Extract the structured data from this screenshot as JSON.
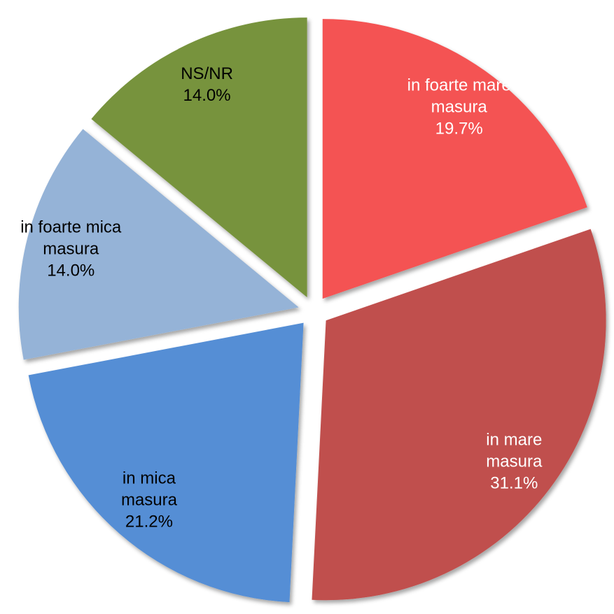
{
  "chart_data": {
    "type": "pie",
    "categories": [
      "in foarte mare masura",
      "in mare masura",
      "in mica masura",
      "in foarte mica masura",
      "NS/NR"
    ],
    "values": [
      19.7,
      31.1,
      21.2,
      14.0,
      14.0
    ],
    "value_labels": [
      "19.7%",
      "31.1%",
      "21.2%",
      "14.0%",
      "14.0%"
    ],
    "colors": [
      "#f45252",
      "#c0504d",
      "#558ed5",
      "#95b3d7",
      "#77933c"
    ],
    "label_colors": [
      "#ffffff",
      "#ffffff",
      "#000000",
      "#000000",
      "#000000"
    ]
  }
}
